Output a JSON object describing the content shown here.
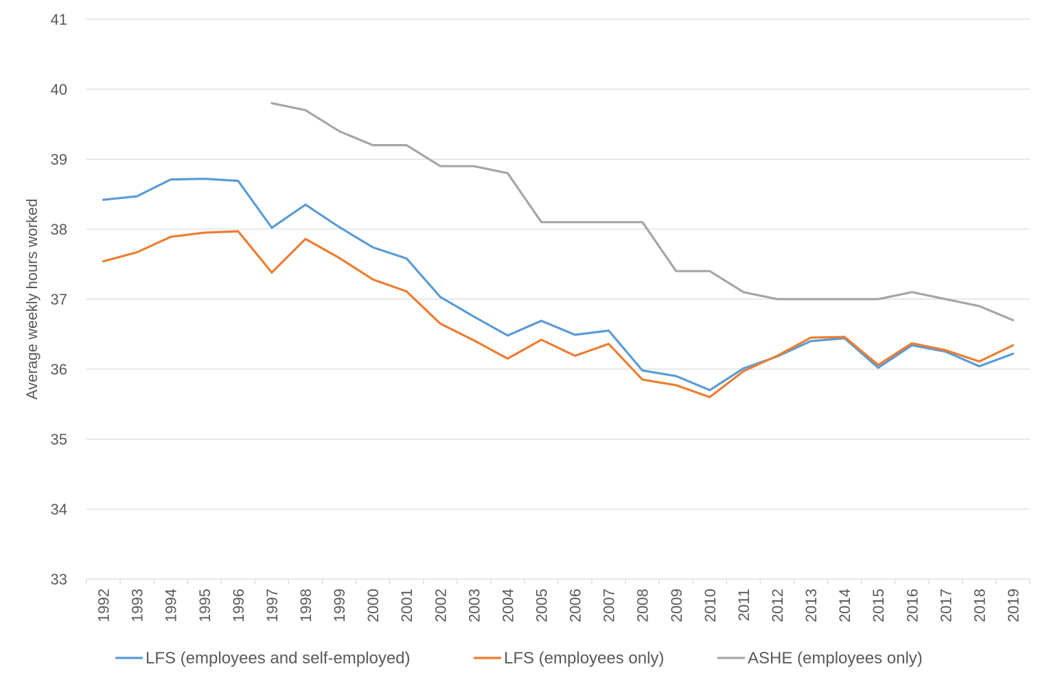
{
  "chart_data": {
    "type": "line",
    "xlabel": "",
    "ylabel": "Average weekly hours worked",
    "ylim": [
      33,
      41
    ],
    "yticks": [
      33,
      34,
      35,
      36,
      37,
      38,
      39,
      40,
      41
    ],
    "grid": "horizontal",
    "legend_position": "bottom",
    "categories": [
      "1992",
      "1993",
      "1994",
      "1995",
      "1996",
      "1997",
      "1998",
      "1999",
      "2000",
      "2001",
      "2002",
      "2003",
      "2004",
      "2005",
      "2006",
      "2007",
      "2008",
      "2009",
      "2010",
      "2011",
      "2012",
      "2013",
      "2014",
      "2015",
      "2016",
      "2017",
      "2018",
      "2019"
    ],
    "series": [
      {
        "name": "LFS (employees and self-employed)",
        "color": "#5B9BD5",
        "values": [
          38.42,
          38.47,
          38.71,
          38.72,
          38.69,
          38.02,
          38.35,
          38.03,
          37.74,
          37.58,
          37.03,
          36.75,
          36.48,
          36.69,
          36.49,
          36.55,
          35.98,
          35.9,
          35.7,
          36.01,
          36.18,
          36.4,
          36.44,
          36.02,
          36.34,
          36.25,
          36.04,
          36.22
        ]
      },
      {
        "name": "LFS (employees only)",
        "color": "#ED7D31",
        "values": [
          37.54,
          37.67,
          37.89,
          37.95,
          37.97,
          37.38,
          37.86,
          37.59,
          37.28,
          37.11,
          36.65,
          36.41,
          36.15,
          36.42,
          36.19,
          36.36,
          35.85,
          35.77,
          35.6,
          35.97,
          36.19,
          36.45,
          36.46,
          36.06,
          36.37,
          36.27,
          36.11,
          36.34
        ]
      },
      {
        "name": "ASHE (employees only)",
        "color": "#A5A5A5",
        "values": [
          null,
          null,
          null,
          null,
          null,
          39.8,
          39.7,
          39.4,
          39.2,
          39.2,
          38.9,
          38.9,
          38.8,
          38.1,
          38.1,
          38.1,
          38.1,
          37.4,
          37.4,
          37.1,
          37.0,
          37.0,
          37.0,
          37.0,
          37.1,
          37.0,
          36.9,
          36.7
        ]
      }
    ]
  }
}
